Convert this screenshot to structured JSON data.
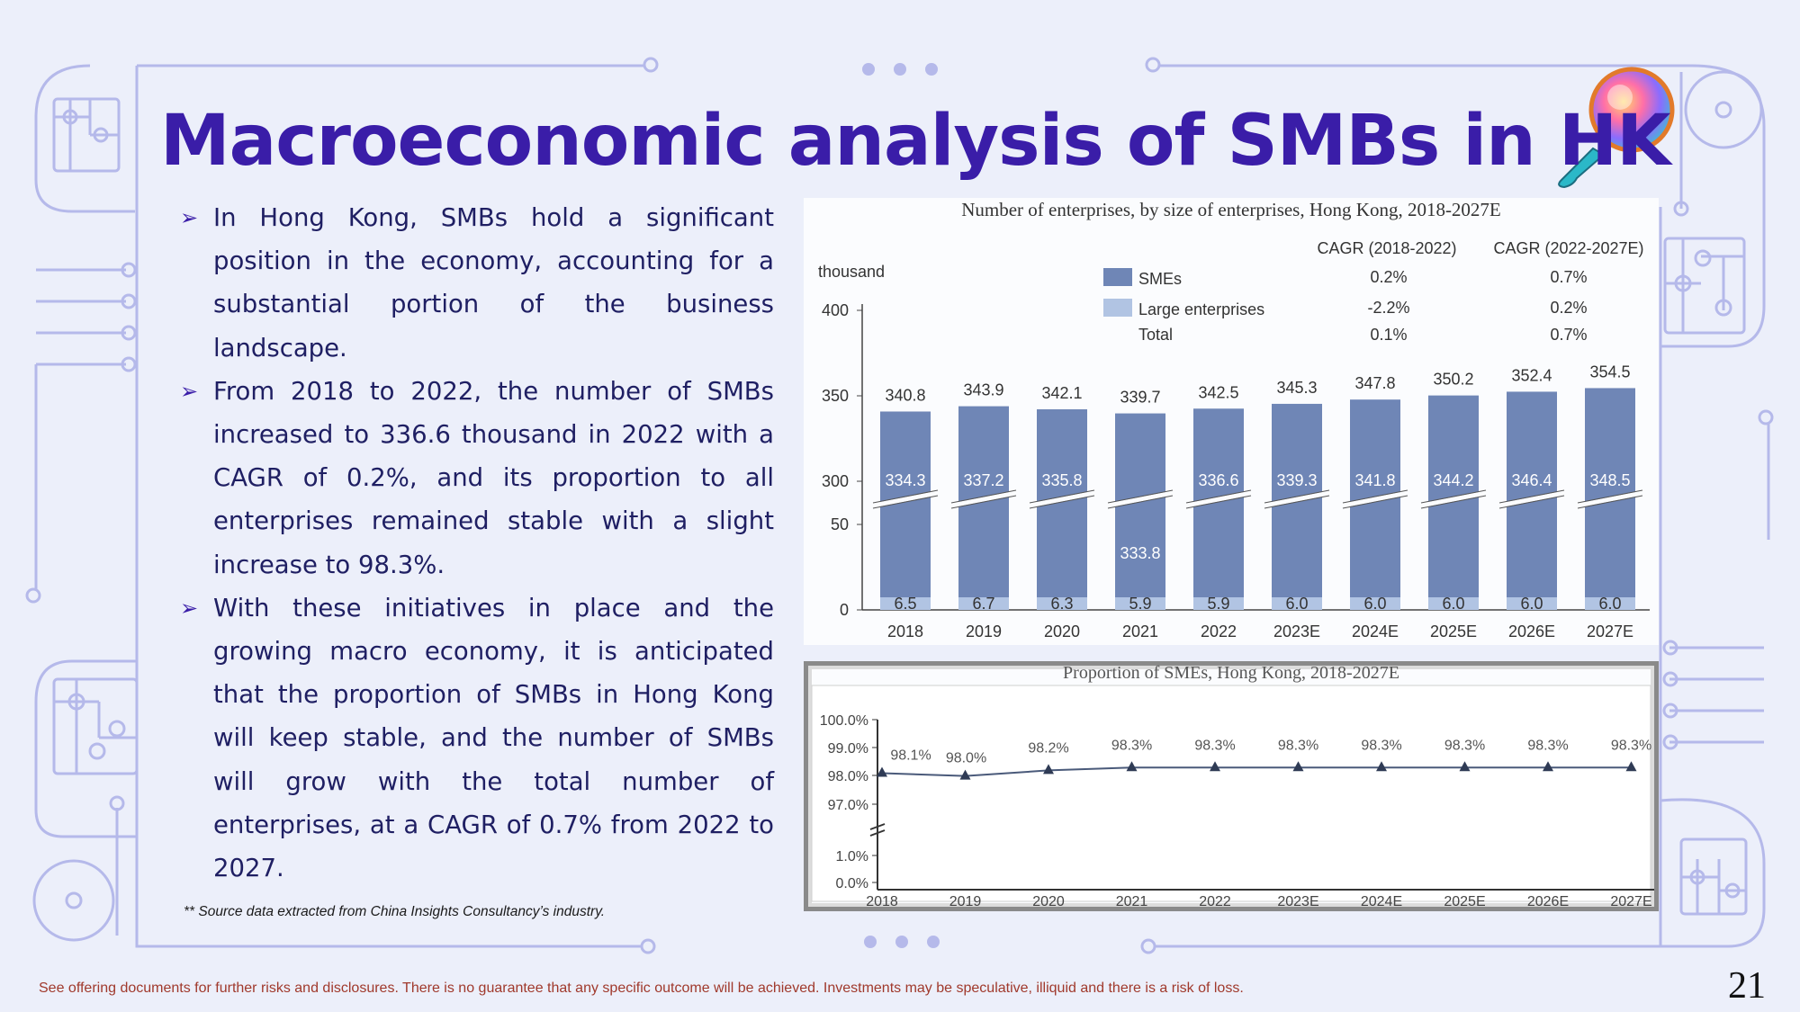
{
  "slide": {
    "title": "Macroeconomic analysis of SMBs in HK",
    "bullets": [
      {
        "text": "In Hong Kong, SMBs hold a significant position in the economy, accounting for a substantial portion of the business landscape."
      },
      {
        "text": "From 2018 to 2022, the number of SMBs increased to 336.6 thousand in 2022 with a CAGR of 0.2%, and its proportion to all enterprises remained stable with a slight increase to 98.3%."
      },
      {
        "text": "With these initiatives in place and the growing macro economy, it is anticipated that the proportion of SMBs in Hong Kong will keep stable, and the number of SMBs will grow with the total number of enterprises, at a CAGR of 0.7% from 2022 to 2027."
      }
    ],
    "bullet_marker": "➢",
    "source_note": "** Source data extracted from China Insights Consultancy’s industry.",
    "disclaimer": "See offering documents for further risks and disclosures. There is no guarantee that any specific outcome will be achieved. Investments may be speculative, illiquid and there is a risk of loss.",
    "page_number": "21",
    "colors": {
      "title": "#3a1da8",
      "sme_bar": "#6f86b6",
      "large_bar": "#b1c4e3",
      "line": "#4a5a7a"
    }
  },
  "chart_data": [
    {
      "type": "bar",
      "stacked": true,
      "title": "Number of enterprises, by size of enterprises, Hong Kong, 2018-2027E",
      "ylabel": "thousand",
      "y_axis_break": true,
      "y_ticks": [
        "0",
        "50",
        "300",
        "350",
        "400"
      ],
      "categories": [
        "2018",
        "2019",
        "2020",
        "2021",
        "2022",
        "2023E",
        "2024E",
        "2025E",
        "2026E",
        "2027E"
      ],
      "series": [
        {
          "name": "SMEs",
          "values": [
            334.3,
            337.2,
            335.8,
            333.8,
            336.6,
            339.3,
            341.8,
            344.2,
            346.4,
            348.5
          ]
        },
        {
          "name": "Large enterprises",
          "values": [
            6.5,
            6.7,
            6.3,
            5.9,
            5.9,
            6.0,
            6.0,
            6.0,
            6.0,
            6.0
          ]
        }
      ],
      "totals": [
        340.8,
        343.9,
        342.1,
        339.7,
        342.5,
        345.3,
        347.8,
        350.2,
        352.4,
        354.5
      ],
      "legend": [
        {
          "name": "SMEs",
          "color": "#6f86b6"
        },
        {
          "name": "Large enterprises",
          "color": "#b1c4e3"
        },
        {
          "name": "Total",
          "color": ""
        }
      ],
      "cagr_table": {
        "headers": [
          "CAGR (2018-2022)",
          "CAGR (2022-2027E)"
        ],
        "rows": [
          {
            "label": "SMEs",
            "values": [
              "0.2%",
              "0.7%"
            ]
          },
          {
            "label": "Large enterprises",
            "values": [
              "-2.2%",
              "0.2%"
            ]
          },
          {
            "label": "Total",
            "values": [
              "0.1%",
              "0.7%"
            ]
          }
        ]
      }
    },
    {
      "type": "line",
      "title": "Proportion of SMEs, Hong Kong, 2018-2027E",
      "x": [
        "2018",
        "2019",
        "2020",
        "2021",
        "2022",
        "2023E",
        "2024E",
        "2025E",
        "2026E",
        "2027E"
      ],
      "values": [
        98.1,
        98.0,
        98.2,
        98.3,
        98.3,
        98.3,
        98.3,
        98.3,
        98.3,
        98.3
      ],
      "value_labels": [
        "98.1%",
        "98.0%",
        "98.2%",
        "98.3%",
        "98.3%",
        "98.3%",
        "98.3%",
        "98.3%",
        "98.3%",
        "98.3%"
      ],
      "y_ticks": [
        "100.0%",
        "99.0%",
        "98.0%",
        "97.0%",
        "1.0%",
        "0.0%"
      ],
      "y_axis_break": true
    }
  ]
}
